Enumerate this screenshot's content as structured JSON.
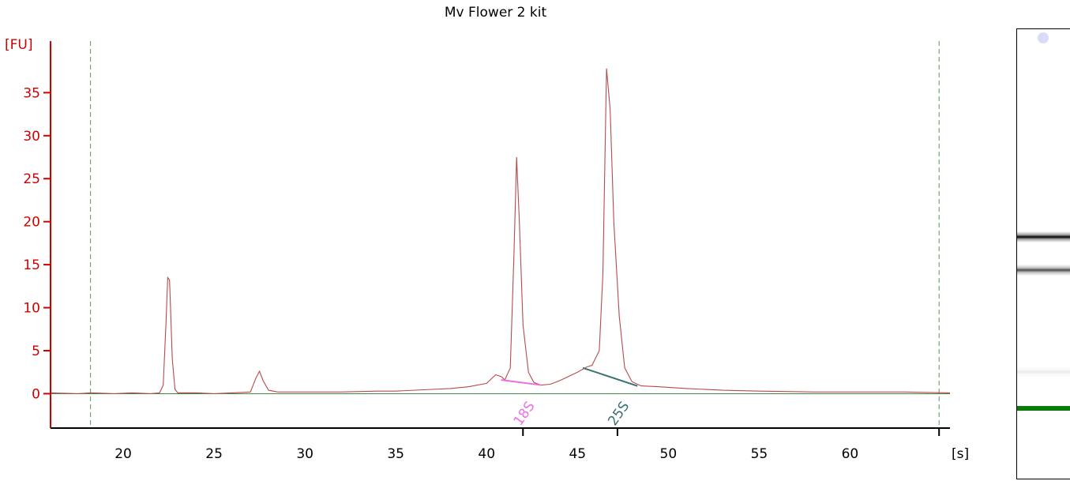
{
  "chart_data": {
    "type": "line",
    "title": "Mv Flower 2 kit",
    "ylabel": "[FU]",
    "xlabel": "[s]",
    "xlim": [
      16,
      65.5
    ],
    "ylim": [
      -4,
      41
    ],
    "xticks": [
      20,
      25,
      30,
      35,
      40,
      45,
      50,
      55,
      60
    ],
    "yticks": [
      0,
      5,
      10,
      15,
      20,
      25,
      30,
      35
    ],
    "grid": false,
    "colors": {
      "trace": "#b84a4a",
      "axis_y": "#d00000",
      "baseline": "#3f8a3f",
      "marker_lines": "#5a9a5a",
      "peak_18S": "#ee70e0",
      "peak_25S": "#3a7070",
      "gel_marker": "#0a7a0a"
    },
    "vertical_markers_x": [
      18.2,
      64.9
    ],
    "series": [
      {
        "values": [
          [
            16,
            0.1
          ],
          [
            17.5,
            0.0
          ],
          [
            18.2,
            0.1
          ],
          [
            19.5,
            0.0
          ],
          [
            20.5,
            0.1
          ],
          [
            21.5,
            0.0
          ],
          [
            22.0,
            0.1
          ],
          [
            22.2,
            1.0
          ],
          [
            22.35,
            8.0
          ],
          [
            22.45,
            13.5
          ],
          [
            22.55,
            13.2
          ],
          [
            22.7,
            4.0
          ],
          [
            22.85,
            0.5
          ],
          [
            23.0,
            0.1
          ],
          [
            24.0,
            0.1
          ],
          [
            25.0,
            0.0
          ],
          [
            26.0,
            0.1
          ],
          [
            27.0,
            0.2
          ],
          [
            27.3,
            1.8
          ],
          [
            27.5,
            2.6
          ],
          [
            27.7,
            1.5
          ],
          [
            28.0,
            0.4
          ],
          [
            28.5,
            0.2
          ],
          [
            30.0,
            0.2
          ],
          [
            32.0,
            0.2
          ],
          [
            34.0,
            0.3
          ],
          [
            35.0,
            0.3
          ],
          [
            37.0,
            0.5
          ],
          [
            38.0,
            0.6
          ],
          [
            39.0,
            0.8
          ],
          [
            40.0,
            1.2
          ],
          [
            40.5,
            2.2
          ],
          [
            40.8,
            2.0
          ],
          [
            41.0,
            1.6
          ],
          [
            41.3,
            3.0
          ],
          [
            41.5,
            16.0
          ],
          [
            41.65,
            27.5
          ],
          [
            41.8,
            20.0
          ],
          [
            42.0,
            8.0
          ],
          [
            42.3,
            2.5
          ],
          [
            42.6,
            1.3
          ],
          [
            43.0,
            1.0
          ],
          [
            43.5,
            1.1
          ],
          [
            44.0,
            1.5
          ],
          [
            44.5,
            2.0
          ],
          [
            45.0,
            2.5
          ],
          [
            45.5,
            3.1
          ],
          [
            45.8,
            3.3
          ],
          [
            46.2,
            5.0
          ],
          [
            46.4,
            14.0
          ],
          [
            46.6,
            37.8
          ],
          [
            46.8,
            33.0
          ],
          [
            47.0,
            20.0
          ],
          [
            47.3,
            9.0
          ],
          [
            47.6,
            3.0
          ],
          [
            48.0,
            1.4
          ],
          [
            48.5,
            0.9
          ],
          [
            49.5,
            0.8
          ],
          [
            51.0,
            0.6
          ],
          [
            53.0,
            0.4
          ],
          [
            55.0,
            0.3
          ],
          [
            58.0,
            0.2
          ],
          [
            61.0,
            0.2
          ],
          [
            63.0,
            0.2
          ],
          [
            65.5,
            0.1
          ]
        ]
      }
    ],
    "annotations": [
      {
        "label": "18S",
        "x": 42.0
      },
      {
        "label": "25S",
        "x": 47.2
      }
    ]
  },
  "gel": {
    "bands": [
      {
        "position": 0.46,
        "intensity": 1.0,
        "color": "#000000"
      },
      {
        "position": 0.535,
        "intensity": 0.7,
        "color": "#000000"
      },
      {
        "position": 0.76,
        "intensity": 0.08,
        "color": "#000000"
      },
      {
        "position": 0.84,
        "intensity": 1.0,
        "color": "#0a7a0a"
      }
    ]
  }
}
